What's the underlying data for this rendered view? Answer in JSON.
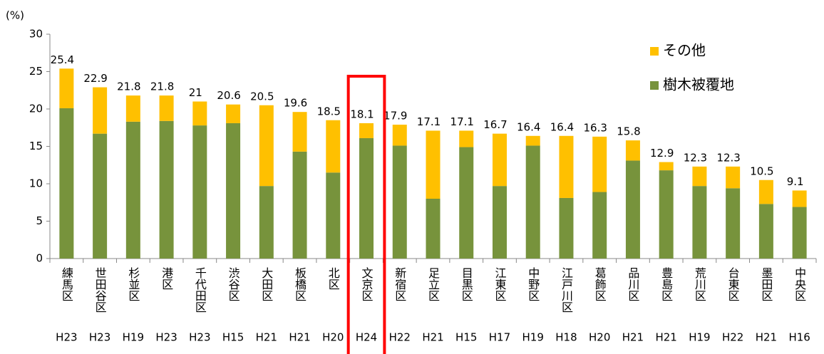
{
  "chart_data": {
    "type": "stacked_bar",
    "y_label": "(%)",
    "categories": [
      "練馬区",
      "世田谷区",
      "杉並区",
      "港区",
      "千代田区",
      "渋谷区",
      "大田区",
      "板橋区",
      "北区",
      "文京区",
      "新宿区",
      "足立区",
      "目黒区",
      "江東区",
      "中野区",
      "江戸川区",
      "葛飾区",
      "品川区",
      "豊島区",
      "荒川区",
      "台東区",
      "墨田区",
      "中央区"
    ],
    "years": [
      "H23",
      "H23",
      "H19",
      "H23",
      "H23",
      "H15",
      "H21",
      "H21",
      "H20",
      "H24",
      "H22",
      "H21",
      "H15",
      "H17",
      "H19",
      "H18",
      "H20",
      "H21",
      "H21",
      "H19",
      "H22",
      "H21",
      "H16"
    ],
    "series": [
      {
        "name": "樹木被覆地",
        "color": "#77933c",
        "values": [
          20.1,
          16.7,
          18.3,
          18.4,
          17.8,
          18.1,
          9.7,
          14.3,
          11.5,
          16.1,
          15.1,
          8.0,
          14.9,
          9.7,
          15.1,
          8.1,
          8.9,
          13.1,
          11.8,
          9.7,
          9.4,
          7.3,
          6.9
        ]
      },
      {
        "name": "その他",
        "color": "#ffc000",
        "values": [
          5.3,
          6.2,
          3.5,
          3.4,
          3.2,
          2.5,
          10.8,
          5.3,
          7.0,
          2.0,
          2.8,
          9.1,
          2.2,
          7.0,
          1.3,
          8.3,
          7.4,
          2.7,
          1.1,
          2.6,
          2.9,
          3.2,
          2.2
        ]
      }
    ],
    "totals": [
      25.4,
      22.9,
      21.8,
      21.8,
      21,
      20.6,
      20.5,
      19.6,
      18.5,
      18.1,
      17.9,
      17.1,
      17.1,
      16.7,
      16.4,
      16.4,
      16.3,
      15.8,
      12.9,
      12.3,
      12.3,
      10.5,
      9.1
    ],
    "ylim": [
      0,
      30
    ],
    "yticks": [
      0,
      5,
      10,
      15,
      20,
      25,
      30
    ],
    "grid": false
  }
}
